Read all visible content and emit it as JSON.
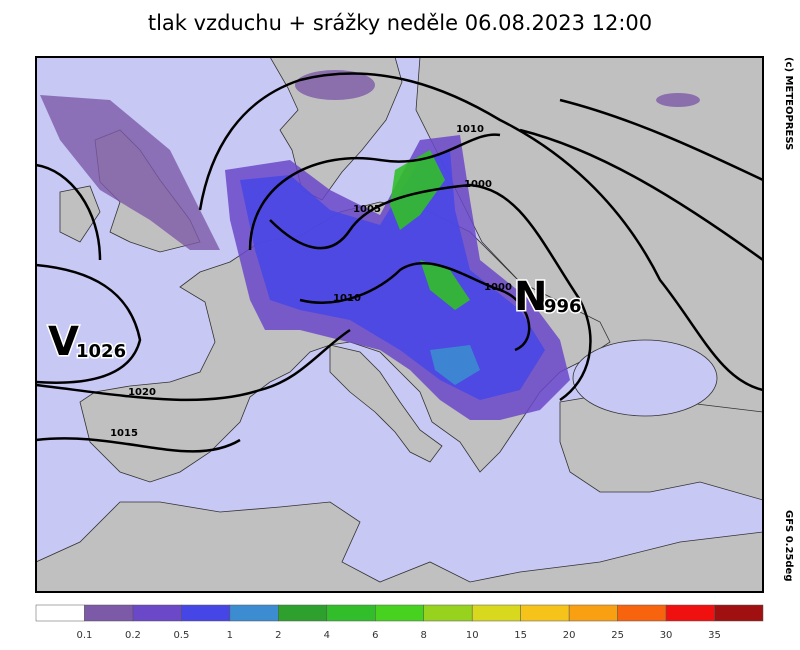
{
  "header": {
    "title": "tlak vzduchu + srážky  neděle 06.08.2023 12:00"
  },
  "credits": {
    "copyright": "(c) METEOPRESS",
    "model": "GFS 0.25deg"
  },
  "pressure_centers": [
    {
      "letter": "V",
      "value": "1026"
    },
    {
      "letter": "N",
      "value": "996"
    }
  ],
  "isobar_labels": [
    "1010",
    "1000",
    "1005",
    "1010",
    "1000",
    "1020",
    "1015"
  ],
  "legend": {
    "colors": [
      "#ffffff",
      "#7d5aa8",
      "#6a48c8",
      "#4646e6",
      "#3c8cd2",
      "#2ea02e",
      "#32be2a",
      "#46d21e",
      "#96d21e",
      "#d8d81e",
      "#f5c31a",
      "#f8a012",
      "#f8640e",
      "#f01010",
      "#a01010"
    ],
    "labels": [
      "0.1",
      "0.2",
      "0.5",
      "1",
      "2",
      "4",
      "6",
      "8",
      "10",
      "15",
      "20",
      "25",
      "30",
      "35"
    ]
  }
}
